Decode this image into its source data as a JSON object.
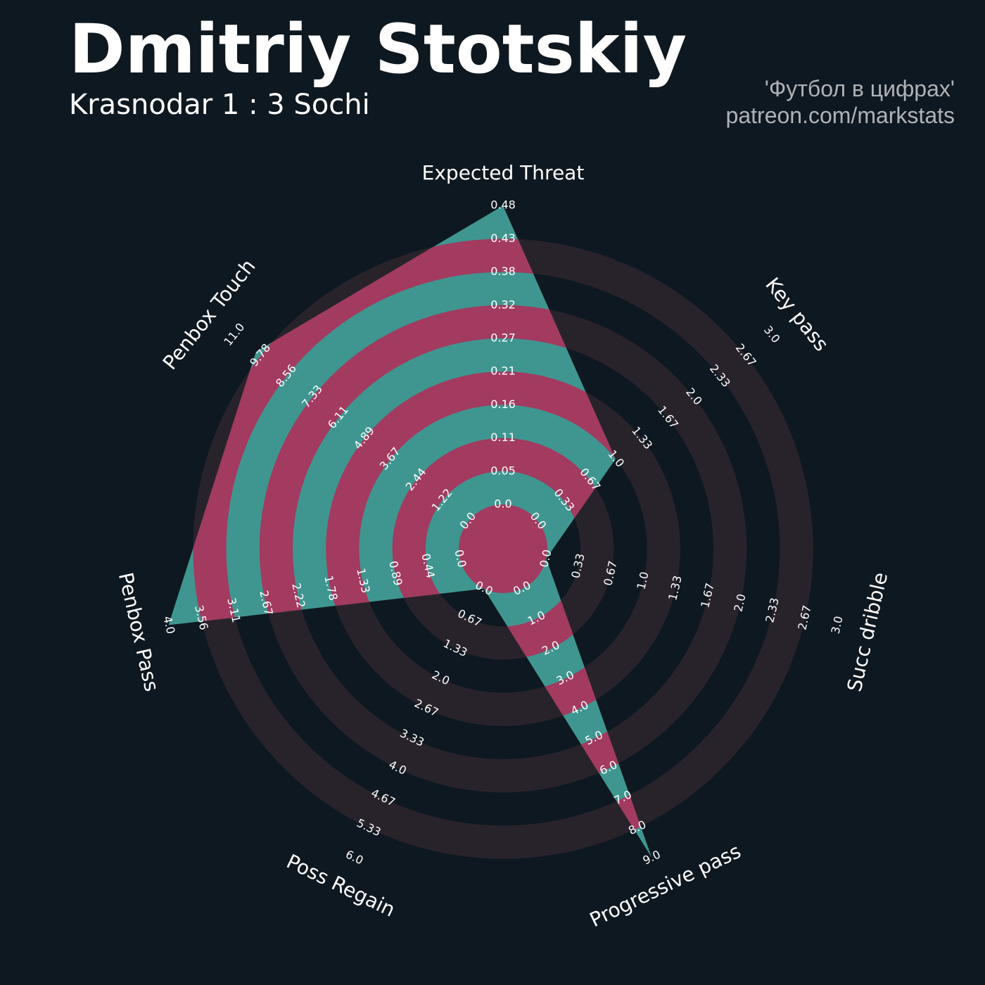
{
  "header": {
    "title": "Dmitriy Stotskiy",
    "subtitle": "Krasnodar 1 : 3 Sochi",
    "credit_line1": "'Футбол в цифрах'",
    "credit_line2": "patreon.com/markstats"
  },
  "colors": {
    "background": "#0e1820",
    "ring_band": "#28232b",
    "fill_primary": "#3f9690",
    "fill_secondary": "#a33a5f",
    "text": "#ffffff"
  },
  "chart_data": {
    "type": "radar",
    "title": "Dmitriy Stotskiy",
    "parameters": [
      "Expected Threat",
      "Key pass",
      "Succ dribble",
      "Progressive pass",
      "Poss Regain",
      "Penbox Pass",
      "Penbox Touch"
    ],
    "values": [
      0.48,
      1.0,
      0.0,
      9.0,
      0.0,
      4.0,
      10.0
    ],
    "ranges": [
      [
        0.0,
        0.48
      ],
      [
        0.0,
        3.0
      ],
      [
        0.0,
        3.0
      ],
      [
        0.0,
        9.0
      ],
      [
        0.0,
        6.0
      ],
      [
        0.0,
        4.0
      ],
      [
        0.0,
        11.0
      ]
    ],
    "tick_labels": [
      [
        "0.0",
        "0.05",
        "0.11",
        "0.16",
        "0.21",
        "0.27",
        "0.32",
        "0.38",
        "0.43",
        "0.48"
      ],
      [
        "0.0",
        "0.33",
        "0.67",
        "1.0",
        "1.33",
        "1.67",
        "2.0",
        "2.33",
        "2.67",
        "3.0"
      ],
      [
        "0.0",
        "0.33",
        "0.67",
        "1.0",
        "1.33",
        "1.67",
        "2.0",
        "2.33",
        "2.67",
        "3.0"
      ],
      [
        "0.0",
        "1.0",
        "2.0",
        "3.0",
        "4.0",
        "5.0",
        "6.0",
        "7.0",
        "8.0",
        "9.0"
      ],
      [
        "0.0",
        "0.67",
        "1.33",
        "2.0",
        "2.67",
        "3.33",
        "4.0",
        "4.67",
        "5.33",
        "6.0"
      ],
      [
        "0.0",
        "0.44",
        "0.89",
        "1.33",
        "1.78",
        "2.22",
        "2.67",
        "3.11",
        "3.56",
        "4.0"
      ],
      [
        "0.0",
        "1.22",
        "2.44",
        "3.67",
        "4.89",
        "6.11",
        "7.33",
        "8.56",
        "9.78",
        "11.0"
      ]
    ]
  }
}
